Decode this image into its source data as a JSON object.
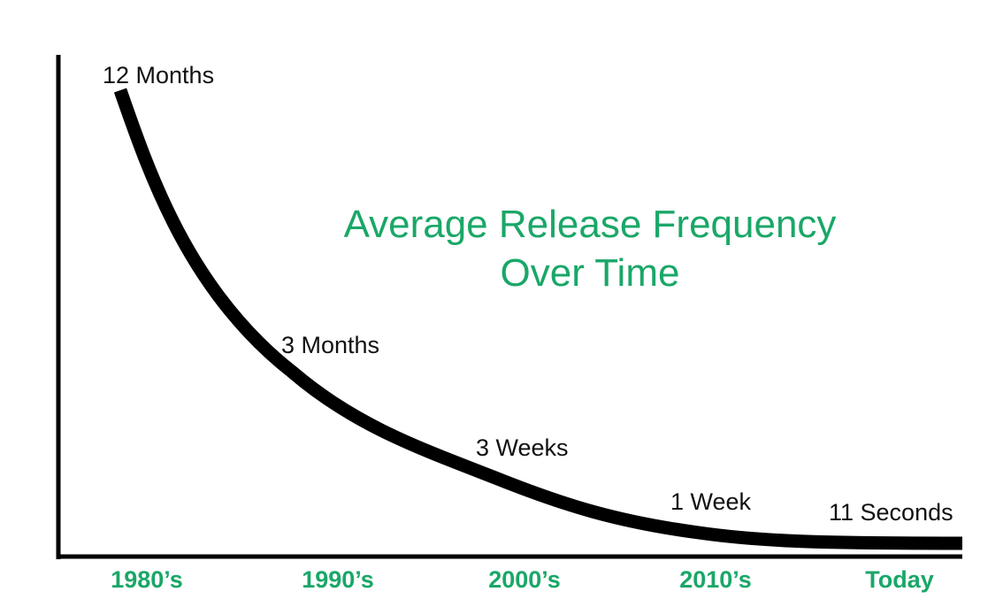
{
  "chart_data": {
    "type": "line",
    "title": "Average Release Frequency",
    "subtitle": "Over Time",
    "xlabel": "",
    "ylabel": "",
    "categories": [
      "1980’s",
      "1990’s",
      "2000’s",
      "2010’s",
      "Today"
    ],
    "grid": false,
    "series": [
      {
        "labels": [
          "12 Months",
          "3 Months",
          "3 Weeks",
          "1 Week",
          "11 Seconds"
        ]
      }
    ],
    "colors": {
      "curve": "#000000",
      "axis": "#000000",
      "title": "#1aa768",
      "tick_labels": "#1aa768",
      "point_labels": "#111111"
    }
  }
}
